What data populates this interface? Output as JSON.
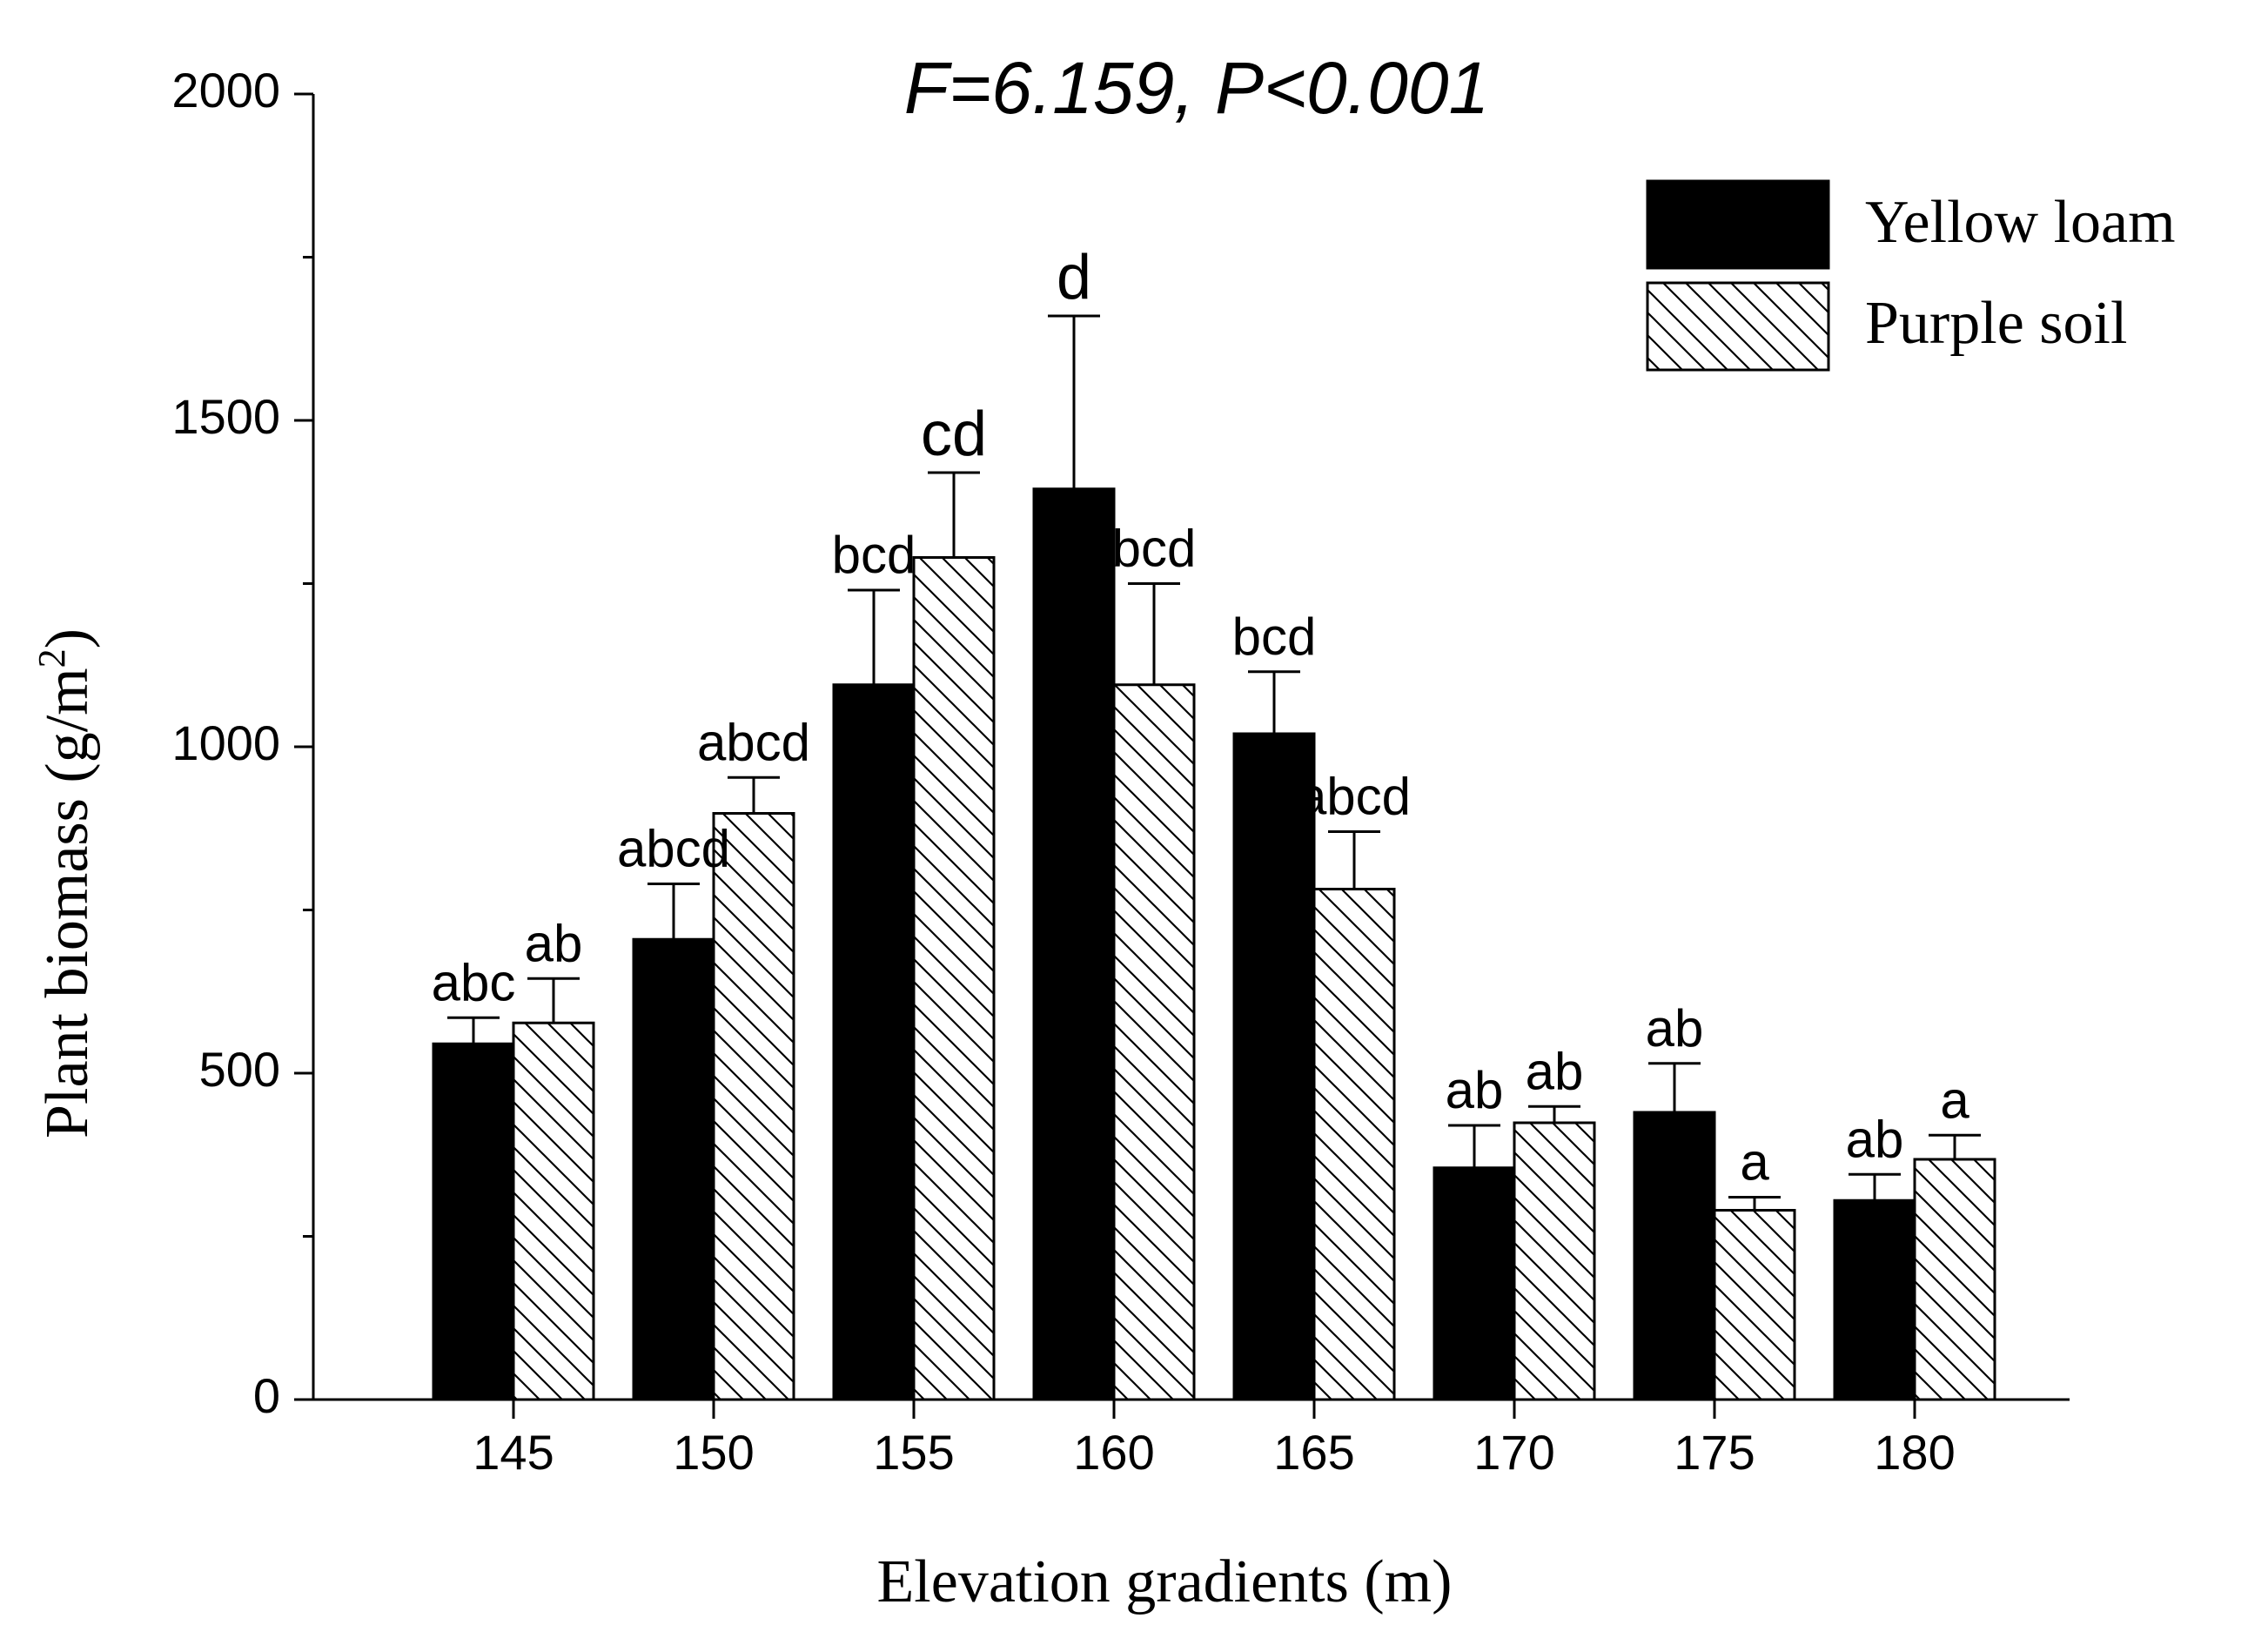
{
  "chart_data": {
    "type": "bar",
    "title": "F=6.159, P<0.001",
    "xlabel": "Elevation gradients (m)",
    "ylabel": "Plant biomass (g/m",
    "ylabel_sup": "2",
    "ylabel_tail": ")",
    "ylim": [
      0,
      2000
    ],
    "yticks": [
      "0",
      "500",
      "1000",
      "1500",
      "2000"
    ],
    "categories": [
      "145",
      "150",
      "155",
      "160",
      "165",
      "170",
      "175",
      "180"
    ],
    "legend_position": "top-right",
    "series": [
      {
        "name": "Yellow loam",
        "fill": "solid",
        "values": [
          545,
          705,
          1095,
          1395,
          1020,
          355,
          440,
          305
        ],
        "errors": [
          40,
          85,
          145,
          265,
          95,
          65,
          75,
          40
        ],
        "labels": [
          "abc",
          "abcd",
          "bcd",
          "d",
          "bcd",
          "ab",
          "ab",
          "ab"
        ]
      },
      {
        "name": "Purple soil",
        "fill": "hatched",
        "values": [
          577,
          898,
          1290,
          1095,
          782,
          424,
          290,
          368
        ],
        "errors": [
          68,
          55,
          130,
          155,
          88,
          25,
          20,
          37
        ],
        "labels": [
          "ab",
          "abcd",
          "cd",
          "bcd",
          "abcd",
          "ab",
          "a",
          "a"
        ]
      }
    ]
  }
}
